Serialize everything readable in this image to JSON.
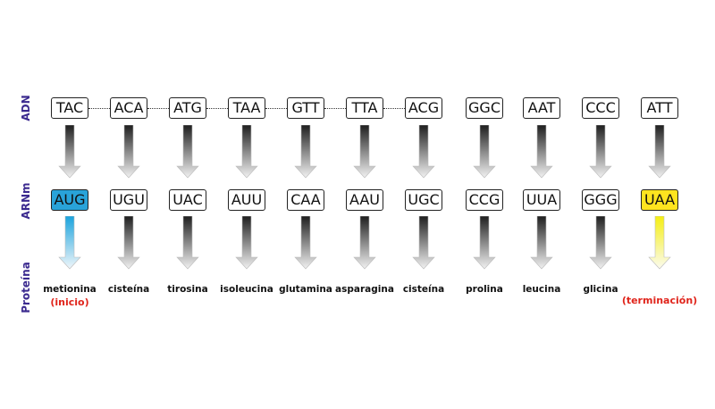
{
  "labels": {
    "adn": "ADN",
    "arnm": "ARNm",
    "proteina": "Proteína"
  },
  "columns": [
    {
      "dna": "TAC",
      "mrna": "AUG",
      "amino": "metionina",
      "note": "(inicio)",
      "kind": "start"
    },
    {
      "dna": "ACA",
      "mrna": "UGU",
      "amino": "cisteína",
      "kind": "normal"
    },
    {
      "dna": "ATG",
      "mrna": "UAC",
      "amino": "tirosina",
      "kind": "normal"
    },
    {
      "dna": "TAA",
      "mrna": "AUU",
      "amino": "isoleucina",
      "kind": "normal"
    },
    {
      "dna": "GTT",
      "mrna": "CAA",
      "amino": "glutamina",
      "kind": "normal"
    },
    {
      "dna": "TTA",
      "mrna": "AAU",
      "amino": "asparagina",
      "kind": "normal"
    },
    {
      "dna": "ACG",
      "mrna": "UGC",
      "amino": "cisteína",
      "kind": "normal"
    },
    {
      "dna": "GGC",
      "mrna": "CCG",
      "amino": "prolina",
      "kind": "normal"
    },
    {
      "dna": "AAT",
      "mrna": "UUA",
      "amino": "leucina",
      "kind": "normal"
    },
    {
      "dna": "CCC",
      "mrna": "GGG",
      "amino": "glicina",
      "kind": "normal"
    },
    {
      "dna": "ATT",
      "mrna": "UAA",
      "amino": "",
      "note": "(terminación)",
      "kind": "stop"
    }
  ],
  "colors": {
    "label": "#3b2a8f",
    "start": "#29a3d9",
    "stop": "#ffe41f",
    "note": "#e0241b"
  }
}
